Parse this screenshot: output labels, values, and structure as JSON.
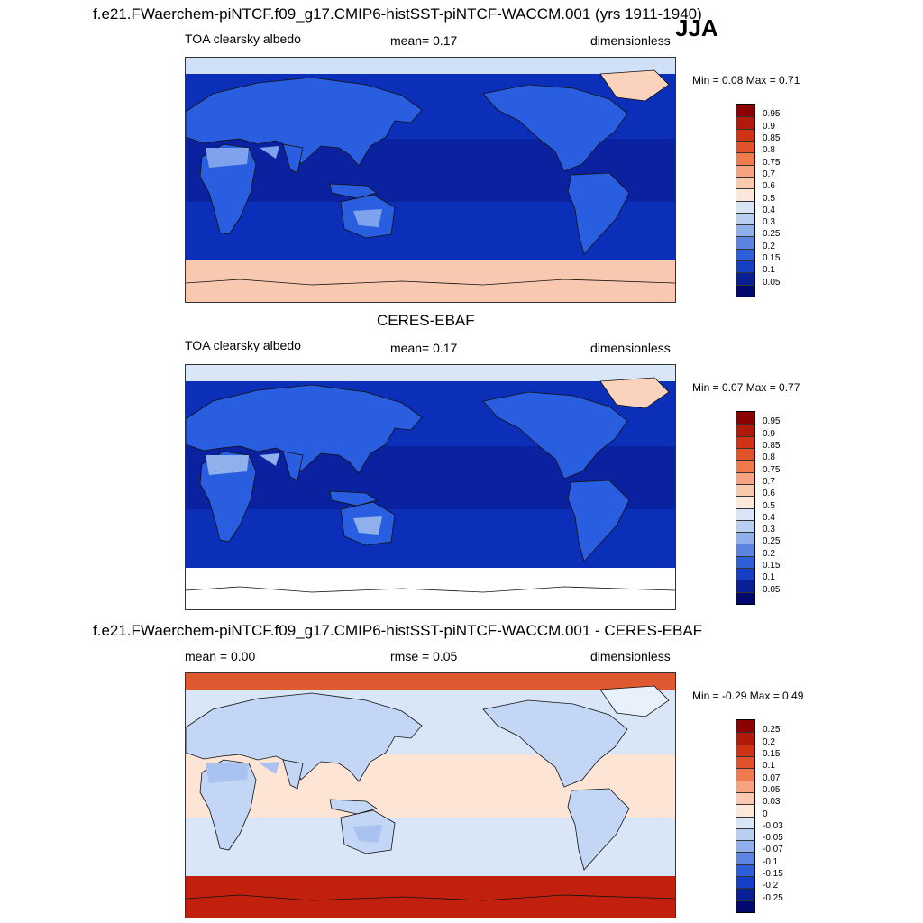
{
  "season": "JJA",
  "panels": [
    {
      "id": "model",
      "title": "f.e21.FWaerchem-piNTCF.f09_g17.CMIP6-histSST-piNTCF-WACCM.001 (yrs 1911-1940)",
      "left_label": "TOA clearsky albedo",
      "center_label": "mean=   0.17",
      "right_label": "dimensionless",
      "minmax": "Min =   0.08 Max =   0.71",
      "colorbar": {
        "labels": [
          "0.95",
          "0.9",
          "0.85",
          "0.8",
          "0.75",
          "0.7",
          "0.6",
          "0.5",
          "0.4",
          "0.3",
          "0.25",
          "0.2",
          "0.15",
          "0.1",
          "0.05"
        ],
        "colors": [
          "#8b0000",
          "#b01a0a",
          "#cf3214",
          "#e2522a",
          "#f07a4e",
          "#f7a37f",
          "#fbc9ae",
          "#fde9db",
          "#d8e6f8",
          "#b8cff2",
          "#8fb0ea",
          "#5b85e0",
          "#2f5fd8",
          "#1540c6",
          "#0a1f95",
          "#000a6e"
        ]
      },
      "map": {
        "ocean": "#0b2fb8",
        "subtropic": "#0a22a0",
        "land": "#2a5ee0",
        "desert": "#7fa2ec",
        "polar_north": "#cfe0f8",
        "antarctic": "#f8c9b0",
        "greenland": "#fbd2bc"
      }
    },
    {
      "id": "obs",
      "title": "CERES-EBAF",
      "left_label": "TOA clearsky albedo",
      "center_label": "mean=   0.17",
      "right_label": "dimensionless",
      "minmax": "Min =   0.07 Max =   0.77",
      "colorbar": {
        "labels": [
          "0.95",
          "0.9",
          "0.85",
          "0.8",
          "0.75",
          "0.7",
          "0.6",
          "0.5",
          "0.4",
          "0.3",
          "0.25",
          "0.2",
          "0.15",
          "0.1",
          "0.05"
        ],
        "colors": [
          "#8b0000",
          "#b01a0a",
          "#cf3214",
          "#e2522a",
          "#f07a4e",
          "#f7a37f",
          "#fbc9ae",
          "#fde9db",
          "#d8e6f8",
          "#b8cff2",
          "#8fb0ea",
          "#5b85e0",
          "#2f5fd8",
          "#1540c6",
          "#0a1f95",
          "#000a6e"
        ]
      },
      "map": {
        "ocean": "#0b2fb8",
        "subtropic": "#0a22a0",
        "land": "#2a5ee0",
        "desert": "#8fb0ea",
        "polar_north": "#d8e6f8",
        "antarctic": "#ffffff",
        "greenland": "#fbd2bc"
      }
    },
    {
      "id": "diff",
      "title": "f.e21.FWaerchem-piNTCF.f09_g17.CMIP6-histSST-piNTCF-WACCM.001 - CERES-EBAF",
      "left_label": "mean =   0.00",
      "center_label": "rmse =   0.05",
      "right_label": "dimensionless",
      "minmax": "Min =  -0.29 Max =   0.49",
      "colorbar": {
        "labels": [
          "0.25",
          "0.2",
          "0.15",
          "0.1",
          "0.07",
          "0.05",
          "0.03",
          "0",
          "-0.03",
          "-0.05",
          "-0.07",
          "-0.1",
          "-0.15",
          "-0.2",
          "-0.25"
        ],
        "colors": [
          "#8b0000",
          "#b01a0a",
          "#cf3214",
          "#e2522a",
          "#f07a4e",
          "#f7a37f",
          "#fbc9ae",
          "#fde9db",
          "#d8e6f8",
          "#b8cff2",
          "#8fb0ea",
          "#5b85e0",
          "#2f5fd8",
          "#1540c6",
          "#0a1f95",
          "#000a6e"
        ]
      },
      "map": {
        "ocean": "#d8e6f8",
        "subtropic": "#fde4d4",
        "land": "#c3d6f5",
        "desert": "#a9c2ef",
        "polar_north": "#e0582f",
        "antarctic": "#c2200e",
        "greenland": "#e8f0fb"
      }
    }
  ]
}
